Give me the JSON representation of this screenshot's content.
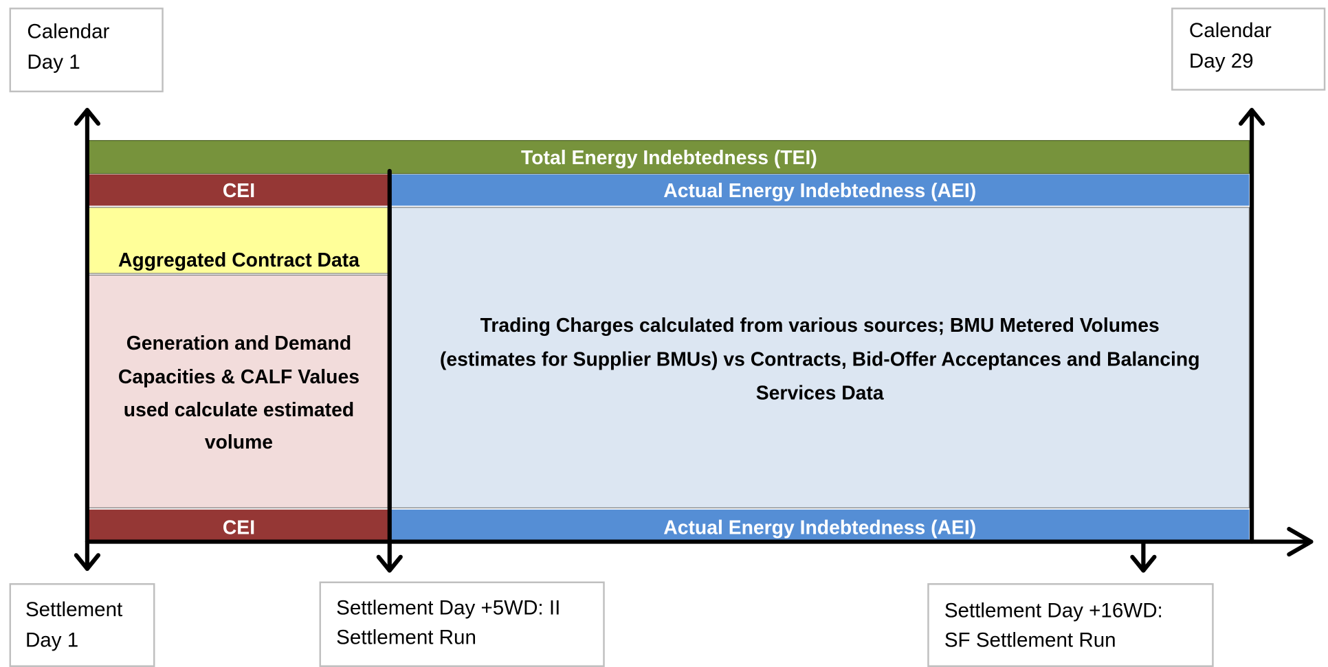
{
  "top_boxes": [
    {
      "lines": [
        "Calendar",
        "Day 1"
      ]
    },
    {
      "lines": [
        "Calendar",
        "Day 29"
      ]
    }
  ],
  "bars": {
    "tei": "Total Energy Indebtedness (TEI)",
    "cei_top": "CEI",
    "aei_top": "Actual Energy Indebtedness (AEI)",
    "cei_bottom": "CEI",
    "aei_bottom": "Actual Energy Indebtedness (AEI)"
  },
  "panels": {
    "aggregated": "Aggregated Contract Data",
    "generation": [
      "Generation and Demand",
      "Capacities & CALF Values",
      "used calculate estimated",
      "volume"
    ],
    "trading": [
      "Trading Charges calculated from various sources; BMU Metered Volumes",
      "(estimates for Supplier BMUs) vs Contracts, Bid-Offer Acceptances and Balancing",
      "Services Data"
    ]
  },
  "bottom_boxes": [
    {
      "lines": [
        "Settlement",
        "Day 1"
      ]
    },
    {
      "lines": [
        "Settlement Day +5WD: II",
        "Settlement Run"
      ]
    },
    {
      "lines": [
        "Settlement Day +16WD:",
        "SF Settlement Run"
      ]
    }
  ]
}
